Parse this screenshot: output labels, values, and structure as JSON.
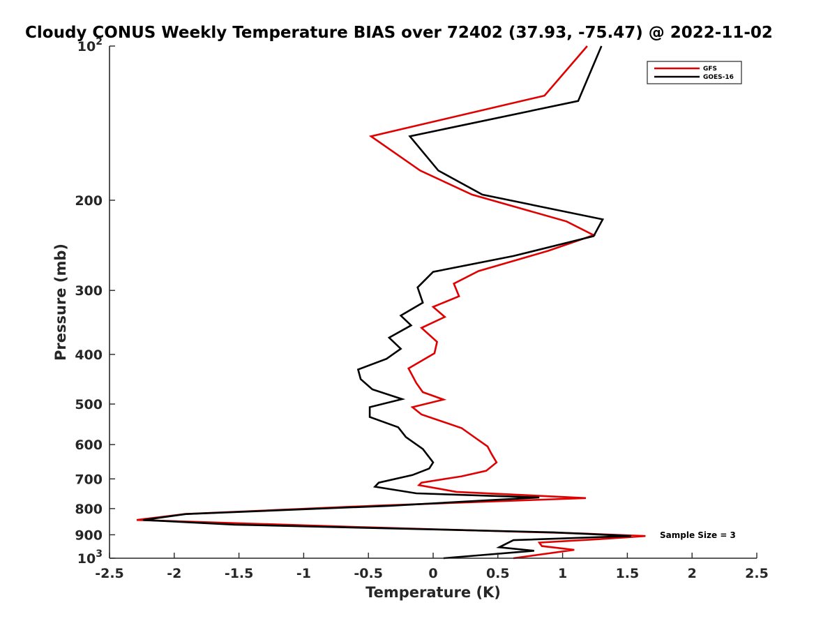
{
  "chart_data": {
    "type": "line",
    "title": "Cloudy CONUS Weekly Temperature BIAS over 72402 (37.93, -75.47) @ 2022-11-02",
    "xlabel": "Temperature (K)",
    "ylabel": "Pressure (mb)",
    "xlim": [
      -2.5,
      2.5
    ],
    "ylim": [
      100,
      1000
    ],
    "y_scale": "log",
    "y_reversed": true,
    "x_ticks": [
      "-2.5",
      "-2",
      "-1.5",
      "-1",
      "-0.5",
      "0",
      "0.5",
      "1",
      "1.5",
      "2",
      "2.5"
    ],
    "x_tick_values": [
      -2.5,
      -2,
      -1.5,
      -1,
      -0.5,
      0,
      0.5,
      1,
      1.5,
      2,
      2.5
    ],
    "y_ticks": [
      {
        "value": 100,
        "base": "10",
        "exp": "2"
      },
      {
        "value": 200,
        "label": "200"
      },
      {
        "value": 300,
        "label": "300"
      },
      {
        "value": 400,
        "label": "400"
      },
      {
        "value": 500,
        "label": "500"
      },
      {
        "value": 600,
        "label": "600"
      },
      {
        "value": 700,
        "label": "700"
      },
      {
        "value": 800,
        "label": "800"
      },
      {
        "value": 900,
        "label": "900"
      },
      {
        "value": 1000,
        "base": "10",
        "exp": "3"
      }
    ],
    "grid": false,
    "legend_position": "top-right",
    "annotation": "Sample Size = 3",
    "series": [
      {
        "name": "GFS",
        "color": "#e00000",
        "points": [
          [
            1.19,
            100
          ],
          [
            0.86,
            125
          ],
          [
            -0.48,
            150
          ],
          [
            -0.1,
            175
          ],
          [
            0.3,
            195
          ],
          [
            1.03,
            220
          ],
          [
            1.24,
            234
          ],
          [
            0.89,
            251
          ],
          [
            0.35,
            275
          ],
          [
            0.16,
            291
          ],
          [
            0.2,
            308
          ],
          [
            0.0,
            323
          ],
          [
            0.09,
            338
          ],
          [
            -0.09,
            355
          ],
          [
            0.03,
            378
          ],
          [
            0.01,
            398
          ],
          [
            -0.19,
            426
          ],
          [
            -0.13,
            455
          ],
          [
            -0.08,
            474
          ],
          [
            0.08,
            490
          ],
          [
            -0.16,
            507
          ],
          [
            -0.09,
            524
          ],
          [
            0.22,
            557
          ],
          [
            0.33,
            583
          ],
          [
            0.42,
            605
          ],
          [
            0.45,
            625
          ],
          [
            0.49,
            650
          ],
          [
            0.41,
            675
          ],
          [
            0.22,
            692
          ],
          [
            -0.09,
            712
          ],
          [
            -0.11,
            720
          ],
          [
            0.18,
            742
          ],
          [
            1.18,
            763
          ],
          [
            -0.47,
            790
          ],
          [
            -1.92,
            820
          ],
          [
            -2.29,
            842
          ],
          [
            -0.53,
            870
          ],
          [
            1.15,
            895
          ],
          [
            1.64,
            905
          ],
          [
            1.28,
            918
          ],
          [
            0.82,
            932
          ],
          [
            0.84,
            947
          ],
          [
            1.09,
            963
          ],
          [
            0.62,
            1000
          ]
        ]
      },
      {
        "name": "GOES-16",
        "color": "#000000",
        "points": [
          [
            1.3,
            100
          ],
          [
            1.12,
            128
          ],
          [
            -0.18,
            150
          ],
          [
            0.04,
            175
          ],
          [
            0.38,
            195
          ],
          [
            1.31,
            218
          ],
          [
            1.24,
            235
          ],
          [
            0.62,
            257
          ],
          [
            0.0,
            276
          ],
          [
            -0.12,
            296
          ],
          [
            -0.08,
            317
          ],
          [
            -0.25,
            336
          ],
          [
            -0.17,
            351
          ],
          [
            -0.34,
            371
          ],
          [
            -0.25,
            390
          ],
          [
            -0.36,
            408
          ],
          [
            -0.58,
            428
          ],
          [
            -0.56,
            447
          ],
          [
            -0.47,
            468
          ],
          [
            -0.24,
            489
          ],
          [
            -0.49,
            507
          ],
          [
            -0.49,
            530
          ],
          [
            -0.27,
            555
          ],
          [
            -0.21,
            580
          ],
          [
            -0.08,
            612
          ],
          [
            0.0,
            650
          ],
          [
            -0.03,
            668
          ],
          [
            -0.16,
            688
          ],
          [
            -0.42,
            712
          ],
          [
            -0.45,
            725
          ],
          [
            -0.13,
            747
          ],
          [
            0.82,
            761
          ],
          [
            -0.34,
            790
          ],
          [
            -1.91,
            820
          ],
          [
            -2.24,
            842
          ],
          [
            -1.53,
            860
          ],
          [
            0.93,
            890
          ],
          [
            1.53,
            905
          ],
          [
            0.62,
            922
          ],
          [
            0.51,
            952
          ],
          [
            0.78,
            967
          ],
          [
            0.08,
            1000
          ]
        ]
      }
    ]
  }
}
